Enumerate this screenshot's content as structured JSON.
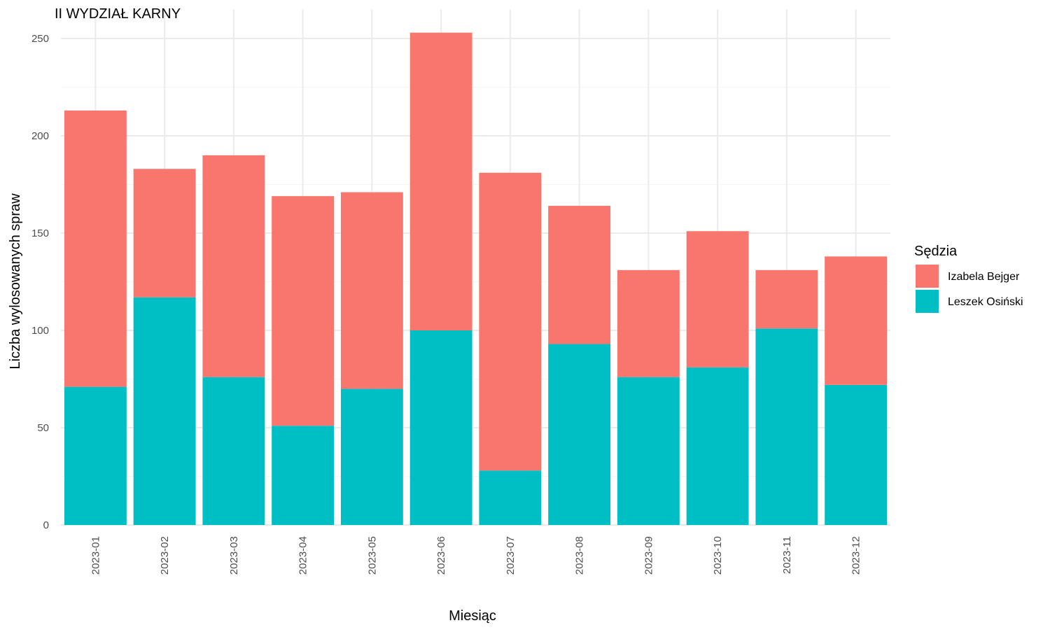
{
  "chart_data": {
    "type": "bar",
    "stacked": true,
    "title": "II WYDZIAŁ KARNY",
    "xlabel": "Miesiąc",
    "ylabel": "Liczba wylosowanych spraw",
    "ylim": [
      0,
      265
    ],
    "yticks": [
      0,
      50,
      100,
      150,
      200,
      250
    ],
    "grid": true,
    "legend": {
      "title": "Sędzia",
      "position": "right"
    },
    "categories": [
      "2023-01",
      "2023-02",
      "2023-03",
      "2023-04",
      "2023-05",
      "2023-06",
      "2023-07",
      "2023-08",
      "2023-09",
      "2023-10",
      "2023-11",
      "2023-12"
    ],
    "series": [
      {
        "name": "Izabela Bejger",
        "color": "#f8766d",
        "values": [
          142,
          66,
          114,
          118,
          101,
          153,
          153,
          71,
          55,
          70,
          30,
          66
        ]
      },
      {
        "name": "Leszek Osiński",
        "color": "#00bfc4",
        "values": [
          71,
          117,
          76,
          51,
          70,
          100,
          28,
          93,
          76,
          81,
          101,
          72
        ]
      }
    ]
  }
}
